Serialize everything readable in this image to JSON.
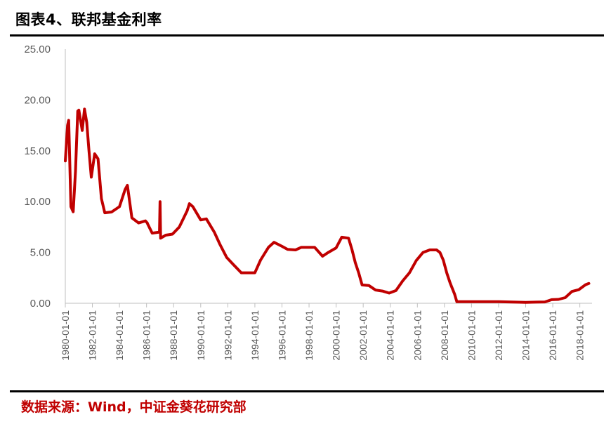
{
  "header": {
    "title": "图表4、联邦基金利率"
  },
  "footer": {
    "source": "数据来源：Wind，中证金葵花研究部"
  },
  "colors": {
    "series": "#c00000",
    "axis": "#bfbfbf",
    "tick_text": "#595959",
    "rule": "#000000"
  },
  "chart_data": {
    "type": "line",
    "title": "",
    "xlabel": "",
    "ylabel": "",
    "ylim": [
      0,
      25
    ],
    "yticks": [
      "25.00",
      "20.00",
      "15.00",
      "10.00",
      "5.00",
      "0.00"
    ],
    "xticks": [
      "1980-01-01",
      "1982-01-01",
      "1984-01-01",
      "1986-01-01",
      "1988-01-01",
      "1990-01-01",
      "1992-01-01",
      "1994-01-01",
      "1996-01-01",
      "1998-01-01",
      "2000-01-01",
      "2002-01-01",
      "2004-01-01",
      "2006-01-01",
      "2008-01-01",
      "2010-01-01",
      "2012-01-01",
      "2014-01-01",
      "2016-01-01",
      "2018-01-01"
    ],
    "grid": false,
    "legend": "none",
    "series": [
      {
        "x": [
          "1980-01-01",
          "1980-03-01",
          "1980-04-01",
          "1980-06-01",
          "1980-08-01",
          "1980-10-01",
          "1980-12-01",
          "1981-01-01",
          "1981-04-01",
          "1981-06-01",
          "1981-08-01",
          "1981-10-01",
          "1981-12-01",
          "1982-03-01",
          "1982-06-01",
          "1982-09-01",
          "1982-12-01",
          "1983-06-01",
          "1984-01-01",
          "1984-06-01",
          "1984-08-01",
          "1984-12-01",
          "1985-06-01",
          "1985-12-01",
          "1986-01-20",
          "1986-02-01",
          "1986-06-01",
          "1986-12-15",
          "1986-12-31",
          "1987-01-15",
          "1987-06-01",
          "1987-12-01",
          "1988-06-01",
          "1989-01-01",
          "1989-03-01",
          "1989-06-01",
          "1990-01-01",
          "1990-06-01",
          "1991-01-01",
          "1991-06-01",
          "1991-12-01",
          "1992-06-01",
          "1993-01-01",
          "1993-06-01",
          "1994-01-01",
          "1994-06-01",
          "1995-01-01",
          "1995-06-01",
          "1996-01-01",
          "1996-06-01",
          "1997-01-01",
          "1997-06-01",
          "1998-01-01",
          "1998-06-01",
          "1999-01-01",
          "1999-06-01",
          "2000-01-01",
          "2000-06-01",
          "2000-12-01",
          "2001-03-01",
          "2001-06-01",
          "2001-09-01",
          "2001-12-01",
          "2002-06-01",
          "2002-12-01",
          "2003-06-01",
          "2003-12-01",
          "2004-06-01",
          "2004-12-01",
          "2005-06-01",
          "2005-12-01",
          "2006-06-01",
          "2006-12-01",
          "2007-06-01",
          "2007-09-01",
          "2007-12-01",
          "2008-03-01",
          "2008-06-01",
          "2008-10-01",
          "2008-12-01",
          "2010-01-01",
          "2012-01-01",
          "2014-01-01",
          "2015-06-01",
          "2015-12-01",
          "2016-06-01",
          "2016-12-01",
          "2017-06-01",
          "2017-12-01",
          "2018-06-01",
          "2018-09-01"
        ],
        "values": [
          14.0,
          17.5,
          18.0,
          9.5,
          9.0,
          13.0,
          18.9,
          19.0,
          17.0,
          19.1,
          17.8,
          15.0,
          12.4,
          14.7,
          14.2,
          10.3,
          8.9,
          8.98,
          9.5,
          11.2,
          11.6,
          8.4,
          7.9,
          8.1,
          7.9,
          7.8,
          6.9,
          7.0,
          10.0,
          6.4,
          6.7,
          6.8,
          7.5,
          9.1,
          9.8,
          9.5,
          8.2,
          8.3,
          7.0,
          5.8,
          4.5,
          3.8,
          3.0,
          3.0,
          3.0,
          4.25,
          5.5,
          6.0,
          5.6,
          5.3,
          5.25,
          5.5,
          5.5,
          5.5,
          4.63,
          5.0,
          5.45,
          6.5,
          6.4,
          5.3,
          4.0,
          3.0,
          1.8,
          1.75,
          1.3,
          1.2,
          1.0,
          1.25,
          2.2,
          3.0,
          4.2,
          5.0,
          5.25,
          5.25,
          5.0,
          4.25,
          3.0,
          2.0,
          0.9,
          0.15,
          0.15,
          0.16,
          0.09,
          0.13,
          0.35,
          0.38,
          0.55,
          1.16,
          1.33,
          1.82,
          1.95
        ]
      }
    ]
  }
}
